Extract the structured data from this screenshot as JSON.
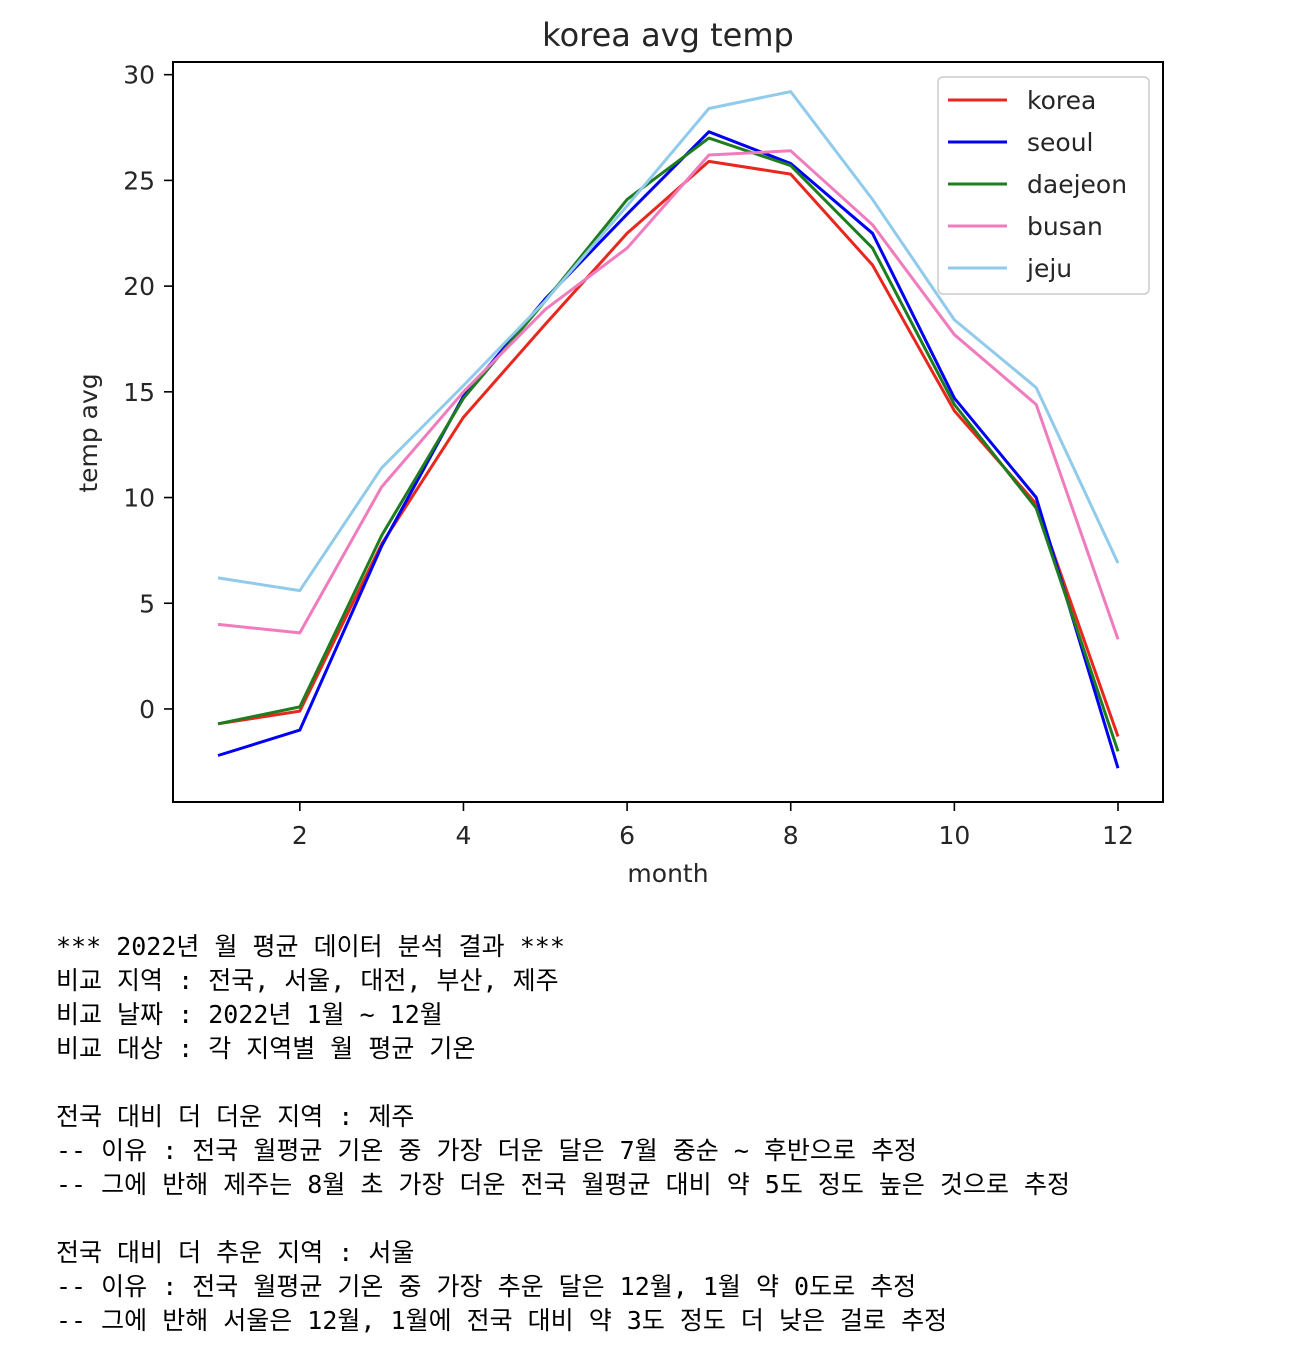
{
  "chart_data": {
    "type": "line",
    "title": "korea avg temp",
    "xlabel": "month",
    "ylabel": "temp avg",
    "xlim": [
      0.45,
      12.55
    ],
    "ylim": [
      -4.4,
      30.6
    ],
    "xticks": [
      2,
      4,
      6,
      8,
      10,
      12
    ],
    "yticks": [
      0,
      5,
      10,
      15,
      20,
      25,
      30
    ],
    "grid": false,
    "legend_position": "top-right",
    "x": [
      1,
      2,
      3,
      4,
      5,
      6,
      7,
      8,
      9,
      10,
      11,
      12
    ],
    "series": [
      {
        "name": "korea",
        "color": "#e8281e",
        "values": [
          -0.7,
          -0.1,
          7.8,
          13.8,
          18.2,
          22.5,
          25.9,
          25.3,
          21.0,
          14.1,
          9.7,
          -1.3
        ]
      },
      {
        "name": "seoul",
        "color": "#0000f5",
        "values": [
          -2.2,
          -1.0,
          7.7,
          14.8,
          19.4,
          23.4,
          27.3,
          25.8,
          22.5,
          14.7,
          10.0,
          -2.8
        ]
      },
      {
        "name": "daejeon",
        "color": "#1e7d1e",
        "values": [
          -0.7,
          0.1,
          8.2,
          14.7,
          19.3,
          24.1,
          27.0,
          25.7,
          21.8,
          14.4,
          9.5,
          -2.0
        ]
      },
      {
        "name": "busan",
        "color": "#f07cbe",
        "values": [
          4.0,
          3.6,
          10.5,
          15.0,
          18.9,
          21.8,
          26.2,
          26.4,
          22.9,
          17.7,
          14.4,
          3.3
        ]
      },
      {
        "name": "jeju",
        "color": "#91cbeb",
        "values": [
          6.2,
          5.6,
          11.4,
          15.3,
          19.3,
          23.8,
          28.4,
          29.2,
          24.1,
          18.4,
          15.2,
          6.9
        ]
      }
    ]
  },
  "output_lines": [
    "*** 2022년 월 평균 데이터 분석 결과 ***",
    "비교 지역 : 전국, 서울, 대전, 부산, 제주",
    "비교 날짜 : 2022년 1월 ~ 12월",
    "비교 대상 : 각 지역별 월 평균 기온",
    "",
    "전국 대비 더 더운 지역 : 제주",
    "-- 이유 : 전국 월평균 기온 중 가장 더운 달은 7월 중순 ~ 후반으로 추정",
    "-- 그에 반해 제주는 8월 초 가장 더운 전국 월평균 대비 약 5도 정도 높은 것으로 추정",
    "",
    "전국 대비 더 추운 지역 : 서울",
    "-- 이유 : 전국 월평균 기온 중 가장 추운 달은 12월, 1월 약 0도로 추정",
    "-- 그에 반해 서울은 12월, 1월에 전국 대비 약 3도 정도 더 낮은 걸로 추정"
  ]
}
